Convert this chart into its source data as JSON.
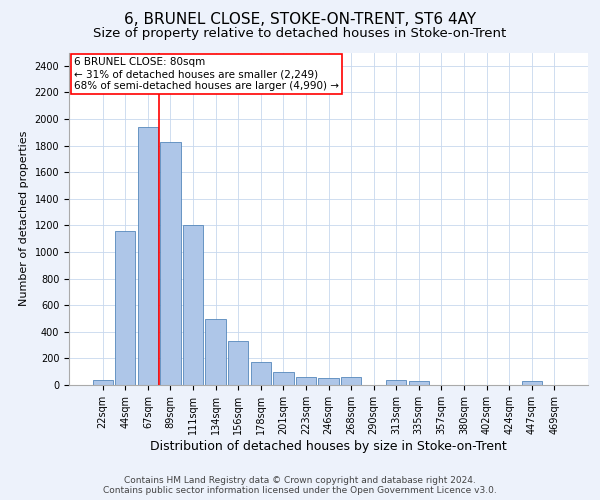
{
  "title": "6, BRUNEL CLOSE, STOKE-ON-TRENT, ST6 4AY",
  "subtitle": "Size of property relative to detached houses in Stoke-on-Trent",
  "xlabel": "Distribution of detached houses by size in Stoke-on-Trent",
  "ylabel": "Number of detached properties",
  "categories": [
    "22sqm",
    "44sqm",
    "67sqm",
    "89sqm",
    "111sqm",
    "134sqm",
    "156sqm",
    "178sqm",
    "201sqm",
    "223sqm",
    "246sqm",
    "268sqm",
    "290sqm",
    "313sqm",
    "335sqm",
    "357sqm",
    "380sqm",
    "402sqm",
    "424sqm",
    "447sqm",
    "469sqm"
  ],
  "values": [
    40,
    1160,
    1940,
    1830,
    1200,
    500,
    330,
    170,
    100,
    60,
    50,
    60,
    0,
    40,
    30,
    0,
    0,
    0,
    0,
    30,
    0
  ],
  "bar_color": "#aec6e8",
  "bar_edge_color": "#5588bb",
  "vline_color": "red",
  "vline_x": 2.5,
  "annotation_title": "6 BRUNEL CLOSE: 80sqm",
  "annotation_line1": "← 31% of detached houses are smaller (2,249)",
  "annotation_line2": "68% of semi-detached houses are larger (4,990) →",
  "ylim": [
    0,
    2500
  ],
  "yticks": [
    0,
    200,
    400,
    600,
    800,
    1000,
    1200,
    1400,
    1600,
    1800,
    2000,
    2200,
    2400
  ],
  "footer_line1": "Contains HM Land Registry data © Crown copyright and database right 2024.",
  "footer_line2": "Contains public sector information licensed under the Open Government Licence v3.0.",
  "background_color": "#edf2fb",
  "plot_bg_color": "#ffffff",
  "grid_color": "#c8d8ee",
  "title_fontsize": 11,
  "subtitle_fontsize": 9.5,
  "xlabel_fontsize": 9,
  "ylabel_fontsize": 8,
  "tick_fontsize": 7,
  "annotation_fontsize": 7.5,
  "footer_fontsize": 6.5
}
